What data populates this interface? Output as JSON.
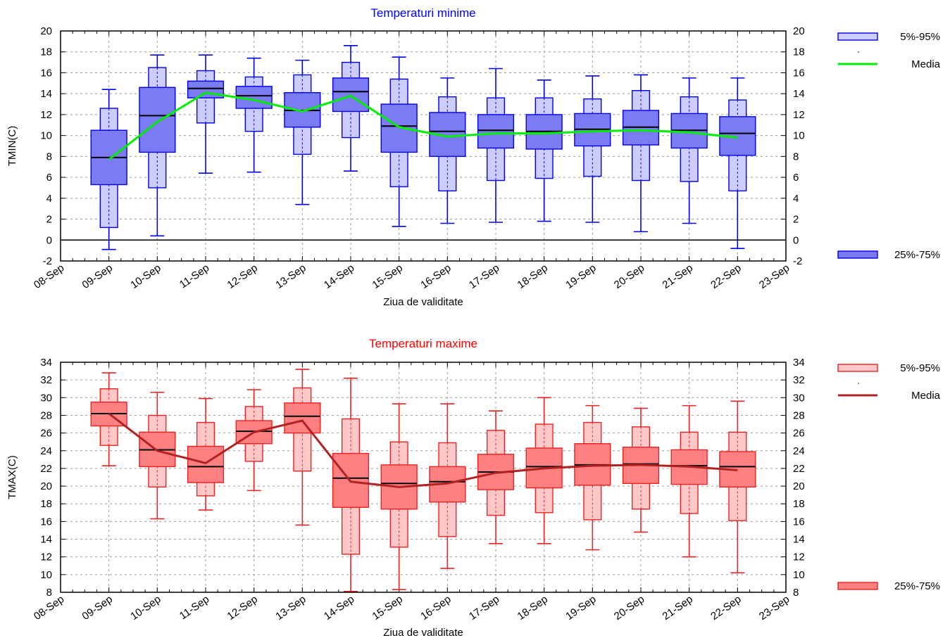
{
  "chart_data": [
    {
      "type": "boxplot",
      "title": "Temperaturi minime",
      "title_color": "#0000ff",
      "xlabel": "Ziua de validitate",
      "ylabel": "TMIN(C)",
      "ylim": [
        -2,
        20
      ],
      "ytick_step": 2,
      "grid": true,
      "zero_line": true,
      "x_tick_labels": [
        "08-Sep",
        "09-Sep",
        "10-Sep",
        "11-Sep",
        "12-Sep",
        "13-Sep",
        "14-Sep",
        "15-Sep",
        "16-Sep",
        "17-Sep",
        "18-Sep",
        "19-Sep",
        "20-Sep",
        "21-Sep",
        "22-Sep",
        "23-Sep"
      ],
      "colors": {
        "outer_fill": "#ccccff",
        "inner_fill": "#7b7bf3",
        "edge": "#0000ee",
        "median": "#000000",
        "mean": "#00ee00"
      },
      "legend": {
        "outer": "5%-95%",
        "mean": "Media",
        "inner": "25%-75%"
      },
      "boxes": [
        {
          "x": "09-Sep",
          "p5": 1.2,
          "p25": 5.3,
          "median": 7.9,
          "p75": 10.5,
          "p95": 12.6,
          "min": -0.9,
          "max": 14.4,
          "mean": 7.7
        },
        {
          "x": "10-Sep",
          "p5": 5.0,
          "p25": 8.4,
          "median": 11.9,
          "p75": 14.6,
          "p95": 16.5,
          "min": 0.4,
          "max": 17.7,
          "mean": 11.3
        },
        {
          "x": "11-Sep",
          "p5": 11.2,
          "p25": 13.6,
          "median": 14.5,
          "p75": 15.2,
          "p95": 16.2,
          "min": 6.4,
          "max": 17.7,
          "mean": 14.1
        },
        {
          "x": "12-Sep",
          "p5": 10.4,
          "p25": 12.6,
          "median": 13.8,
          "p75": 14.7,
          "p95": 15.6,
          "min": 6.5,
          "max": 17.4,
          "mean": 13.4
        },
        {
          "x": "13-Sep",
          "p5": 8.2,
          "p25": 10.8,
          "median": 12.4,
          "p75": 14.1,
          "p95": 15.8,
          "min": 3.4,
          "max": 17.2,
          "mean": 12.3
        },
        {
          "x": "14-Sep",
          "p5": 9.8,
          "p25": 12.3,
          "median": 14.2,
          "p75": 15.5,
          "p95": 17.0,
          "min": 6.6,
          "max": 18.6,
          "mean": 13.8
        },
        {
          "x": "15-Sep",
          "p5": 5.1,
          "p25": 8.4,
          "median": 10.9,
          "p75": 13.0,
          "p95": 15.4,
          "min": 1.3,
          "max": 17.5,
          "mean": 10.8
        },
        {
          "x": "16-Sep",
          "p5": 4.7,
          "p25": 8.0,
          "median": 10.4,
          "p75": 12.2,
          "p95": 13.7,
          "min": 1.6,
          "max": 15.5,
          "mean": 9.9
        },
        {
          "x": "17-Sep",
          "p5": 5.7,
          "p25": 8.8,
          "median": 10.5,
          "p75": 12.0,
          "p95": 13.6,
          "min": 1.7,
          "max": 16.4,
          "mean": 10.2
        },
        {
          "x": "18-Sep",
          "p5": 5.9,
          "p25": 8.7,
          "median": 10.4,
          "p75": 12.0,
          "p95": 13.6,
          "min": 1.8,
          "max": 15.3,
          "mean": 10.2
        },
        {
          "x": "19-Sep",
          "p5": 6.1,
          "p25": 9.0,
          "median": 10.6,
          "p75": 12.1,
          "p95": 13.5,
          "min": 1.7,
          "max": 15.7,
          "mean": 10.4
        },
        {
          "x": "20-Sep",
          "p5": 5.7,
          "p25": 9.1,
          "median": 10.8,
          "p75": 12.4,
          "p95": 14.3,
          "min": 0.8,
          "max": 15.8,
          "mean": 10.5
        },
        {
          "x": "21-Sep",
          "p5": 5.6,
          "p25": 8.8,
          "median": 10.5,
          "p75": 12.1,
          "p95": 13.7,
          "min": 1.6,
          "max": 15.5,
          "mean": 10.3
        },
        {
          "x": "22-Sep",
          "p5": 4.7,
          "p25": 8.1,
          "median": 10.2,
          "p75": 11.8,
          "p95": 13.4,
          "min": -0.8,
          "max": 15.5,
          "mean": 9.8
        }
      ]
    },
    {
      "type": "boxplot",
      "title": "Temperaturi maxime",
      "title_color": "#ff0000",
      "xlabel": "Ziua de validitate",
      "ylabel": "TMAX(C)",
      "ylim": [
        8,
        34
      ],
      "ytick_step": 2,
      "grid": true,
      "zero_line": false,
      "x_tick_labels": [
        "08-Sep",
        "09-Sep",
        "10-Sep",
        "11-Sep",
        "12-Sep",
        "13-Sep",
        "14-Sep",
        "15-Sep",
        "16-Sep",
        "17-Sep",
        "18-Sep",
        "19-Sep",
        "20-Sep",
        "21-Sep",
        "22-Sep",
        "23-Sep"
      ],
      "colors": {
        "outer_fill": "#ffc8c8",
        "inner_fill": "#ff8080",
        "edge": "#ee2222",
        "median": "#000000",
        "mean": "#b22222"
      },
      "legend": {
        "outer": "5%-95%",
        "mean": "Media",
        "inner": "25%-75%"
      },
      "boxes": [
        {
          "x": "09-Sep",
          "p5": 24.6,
          "p25": 26.8,
          "median": 28.2,
          "p75": 29.5,
          "p95": 31.0,
          "min": 22.3,
          "max": 32.8,
          "mean": 28.2
        },
        {
          "x": "10-Sep",
          "p5": 19.9,
          "p25": 22.2,
          "median": 24.1,
          "p75": 26.1,
          "p95": 28.0,
          "min": 16.3,
          "max": 30.6,
          "mean": 24.0
        },
        {
          "x": "11-Sep",
          "p5": 18.9,
          "p25": 20.4,
          "median": 22.2,
          "p75": 24.5,
          "p95": 27.2,
          "min": 17.3,
          "max": 29.9,
          "mean": 22.6
        },
        {
          "x": "12-Sep",
          "p5": 22.8,
          "p25": 24.8,
          "median": 26.2,
          "p75": 27.4,
          "p95": 29.0,
          "min": 19.5,
          "max": 30.9,
          "mean": 26.1
        },
        {
          "x": "13-Sep",
          "p5": 21.7,
          "p25": 26.0,
          "median": 27.9,
          "p75": 29.4,
          "p95": 31.1,
          "min": 15.6,
          "max": 33.2,
          "mean": 27.4
        },
        {
          "x": "14-Sep",
          "p5": 12.3,
          "p25": 17.6,
          "median": 20.9,
          "p75": 23.7,
          "p95": 27.6,
          "min": 8.1,
          "max": 32.2,
          "mean": 20.5
        },
        {
          "x": "15-Sep",
          "p5": 13.1,
          "p25": 17.4,
          "median": 20.3,
          "p75": 22.4,
          "p95": 25.0,
          "min": 8.3,
          "max": 29.3,
          "mean": 19.9
        },
        {
          "x": "16-Sep",
          "p5": 14.3,
          "p25": 18.2,
          "median": 20.5,
          "p75": 22.2,
          "p95": 24.9,
          "min": 10.7,
          "max": 29.3,
          "mean": 20.3
        },
        {
          "x": "17-Sep",
          "p5": 16.7,
          "p25": 19.6,
          "median": 21.6,
          "p75": 23.6,
          "p95": 26.3,
          "min": 13.5,
          "max": 28.5,
          "mean": 21.5
        },
        {
          "x": "18-Sep",
          "p5": 17.0,
          "p25": 19.8,
          "median": 22.2,
          "p75": 24.3,
          "p95": 27.0,
          "min": 13.5,
          "max": 30.0,
          "mean": 22.0
        },
        {
          "x": "19-Sep",
          "p5": 16.2,
          "p25": 20.1,
          "median": 22.4,
          "p75": 24.8,
          "p95": 27.2,
          "min": 12.8,
          "max": 29.1,
          "mean": 22.3
        },
        {
          "x": "20-Sep",
          "p5": 17.4,
          "p25": 20.3,
          "median": 22.5,
          "p75": 24.4,
          "p95": 26.7,
          "min": 14.8,
          "max": 28.8,
          "mean": 22.4
        },
        {
          "x": "21-Sep",
          "p5": 16.9,
          "p25": 20.2,
          "median": 22.3,
          "p75": 24.1,
          "p95": 26.1,
          "min": 12.0,
          "max": 29.1,
          "mean": 22.2
        },
        {
          "x": "22-Sep",
          "p5": 16.1,
          "p25": 19.9,
          "median": 22.2,
          "p75": 23.9,
          "p95": 26.1,
          "min": 10.2,
          "max": 29.6,
          "mean": 21.8
        }
      ]
    }
  ]
}
